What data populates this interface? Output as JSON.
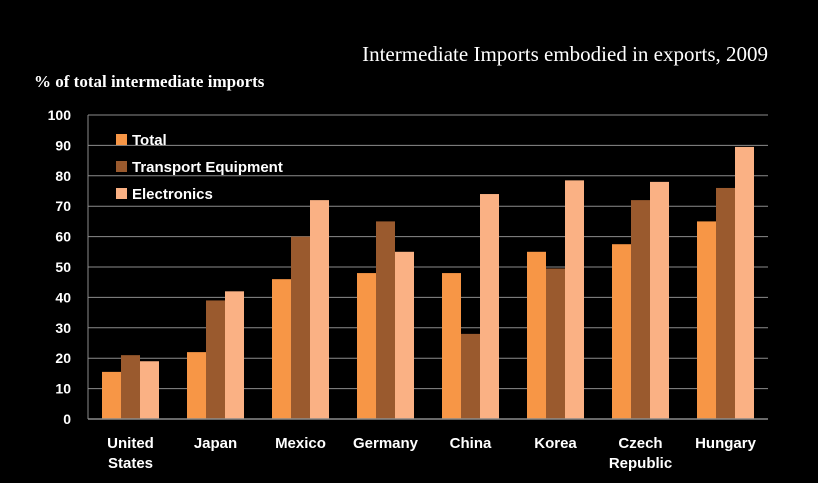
{
  "chart_data": {
    "type": "bar",
    "title": "Intermediate Imports embodied in exports, 2009",
    "ylabel": "% of  total intermediate imports",
    "xlabel": "",
    "ylim": [
      0,
      100
    ],
    "yticks": [
      0,
      10,
      20,
      30,
      40,
      50,
      60,
      70,
      80,
      90,
      100
    ],
    "grid": true,
    "legend": "top-left",
    "categories": [
      [
        "United",
        "States"
      ],
      [
        "Japan"
      ],
      [
        "Mexico"
      ],
      [
        "Germany"
      ],
      [
        "China"
      ],
      [
        "Korea"
      ],
      [
        "Czech",
        "Republic"
      ],
      [
        "Hungary"
      ]
    ],
    "series": [
      {
        "name": "Total",
        "color": "#F79646",
        "values": [
          15.5,
          22,
          46,
          48,
          48,
          55,
          57.5,
          65
        ]
      },
      {
        "name": "Transport Equipment",
        "color": "#9A5A2E",
        "values": [
          21,
          39,
          60,
          65,
          28,
          49.5,
          72,
          76
        ]
      },
      {
        "name": "Electronics",
        "color": "#FAB184",
        "values": [
          19,
          42,
          72,
          55,
          74,
          78.5,
          78,
          89.5
        ]
      }
    ]
  }
}
